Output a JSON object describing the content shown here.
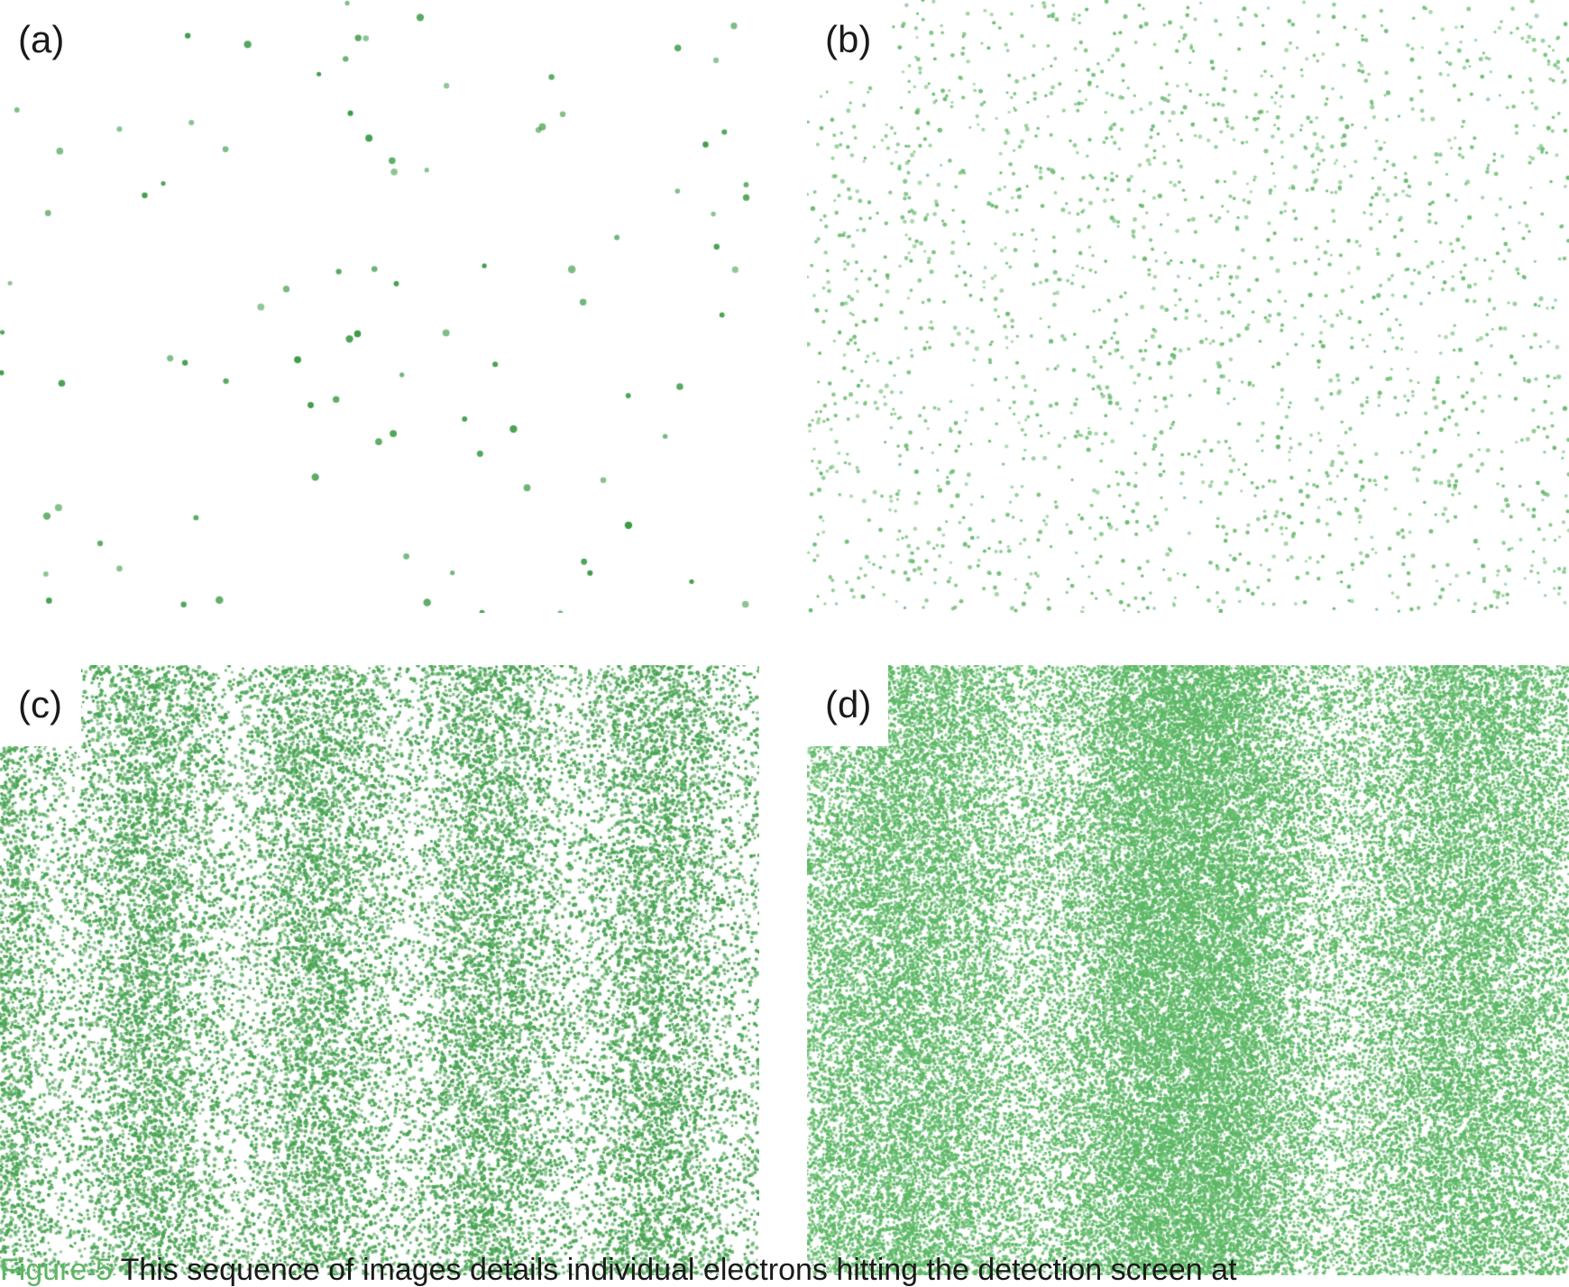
{
  "figure": {
    "panels": [
      {
        "id": "a",
        "label": "(a)",
        "dot_count": 95,
        "dot_color": "#3d9b47",
        "dot_radius_scale": 1.0,
        "pattern": "sparse"
      },
      {
        "id": "b",
        "label": "(b)",
        "dot_count": 2100,
        "dot_color": "#6cbb72",
        "dot_radius_scale": 0.6,
        "pattern": "uniform"
      },
      {
        "id": "c",
        "label": "(c)",
        "dot_count": 26000,
        "dot_color": "#4aa554",
        "dot_radius_scale": 0.55,
        "pattern": "fringes",
        "fringe_count": 4.5
      },
      {
        "id": "d",
        "label": "(d)",
        "dot_count": 60000,
        "dot_color": "#5cb865",
        "dot_radius_scale": 0.5,
        "pattern": "central-max",
        "fringe_count": 5
      }
    ],
    "caption": {
      "fig_label": "Figure 5",
      "text": " This sequence of images details individual electrons hitting the detection screen at"
    }
  }
}
